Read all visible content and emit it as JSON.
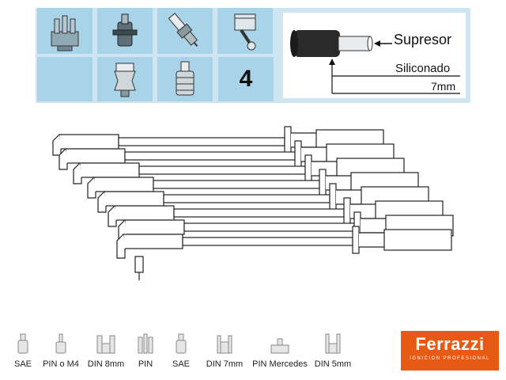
{
  "spec_panel": {
    "cylinders": "4",
    "icons": [
      "distributor-cap-icon",
      "ignition-coil-icon",
      "spark-plug-icon",
      "piston-icon",
      "coil-terminal-icon",
      "plug-terminal-icon"
    ],
    "wire": {
      "suppressor_label": "Supresor",
      "material_label": "Siliconado",
      "diameter_label": "7mm"
    }
  },
  "terminals": [
    "SAE",
    "PIN o M4",
    "DIN 8mm",
    "PIN",
    "SAE",
    "DIN 7mm",
    "PIN Mercedes",
    "DIN 5mm"
  ],
  "brand": {
    "name": "Ferrazzi",
    "tagline": "IGNICION PROFESIONAL",
    "color": "#e65a14"
  },
  "colors": {
    "panel_light": "#cfe6f2",
    "panel_dark": "#a9d3e8"
  }
}
